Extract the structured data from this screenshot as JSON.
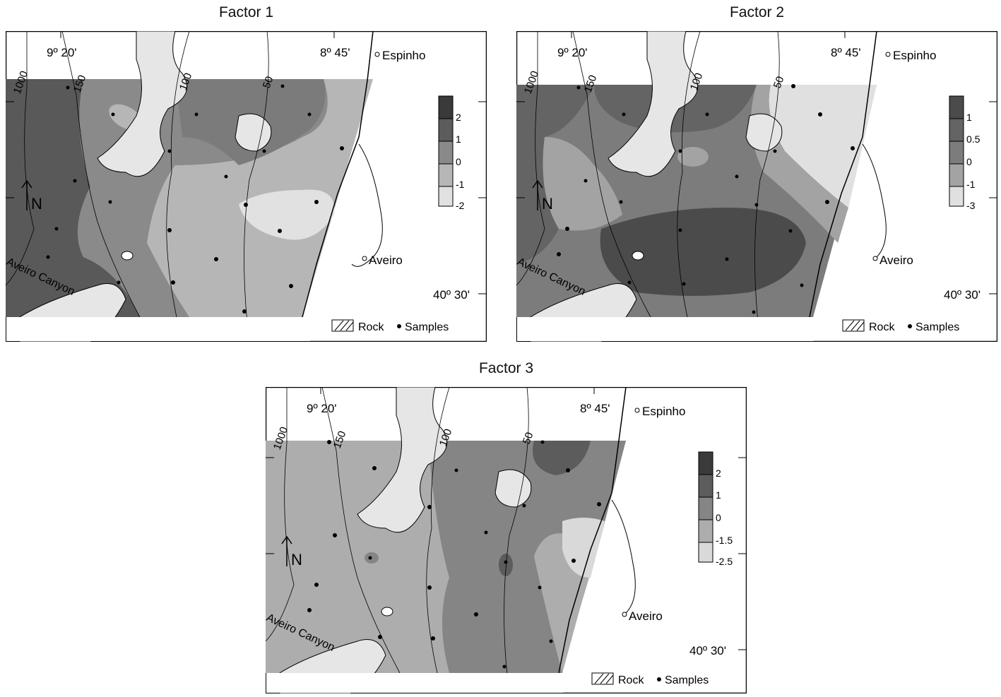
{
  "figure": {
    "panels": [
      {
        "title": "Factor 1",
        "legend_levels": [
          "2",
          "1",
          "0",
          "-1",
          "-2"
        ],
        "legend_colors": [
          "#3a3a3a",
          "#5c5c5c",
          "#8a8a8a",
          "#b6b6b6",
          "#e1e1e1"
        ]
      },
      {
        "title": "Factor 2",
        "legend_levels": [
          "1",
          "0.5",
          "0",
          "-1",
          "-3"
        ],
        "legend_colors": [
          "#4b4b4b",
          "#646464",
          "#7c7c7c",
          "#a3a3a3",
          "#e0e0e0"
        ]
      },
      {
        "title": "Factor 3",
        "legend_levels": [
          "2",
          "1",
          "0",
          "-1.5",
          "-2.5"
        ],
        "legend_colors": [
          "#3a3a3a",
          "#5c5c5c",
          "#858585",
          "#adadad",
          "#d9d9d9"
        ]
      }
    ],
    "map_labels": {
      "lon_west": "9º 20'",
      "lon_east": "8º 45'",
      "lat": "40º 30'",
      "espinho": "Espinho",
      "aveiro": "Aveiro",
      "canyon": "Aveiro Canyon",
      "north": "N",
      "isobaths": [
        "1000",
        "150",
        "100",
        "50"
      ]
    },
    "legend": {
      "rock": "Rock",
      "samples": "Samples"
    }
  }
}
